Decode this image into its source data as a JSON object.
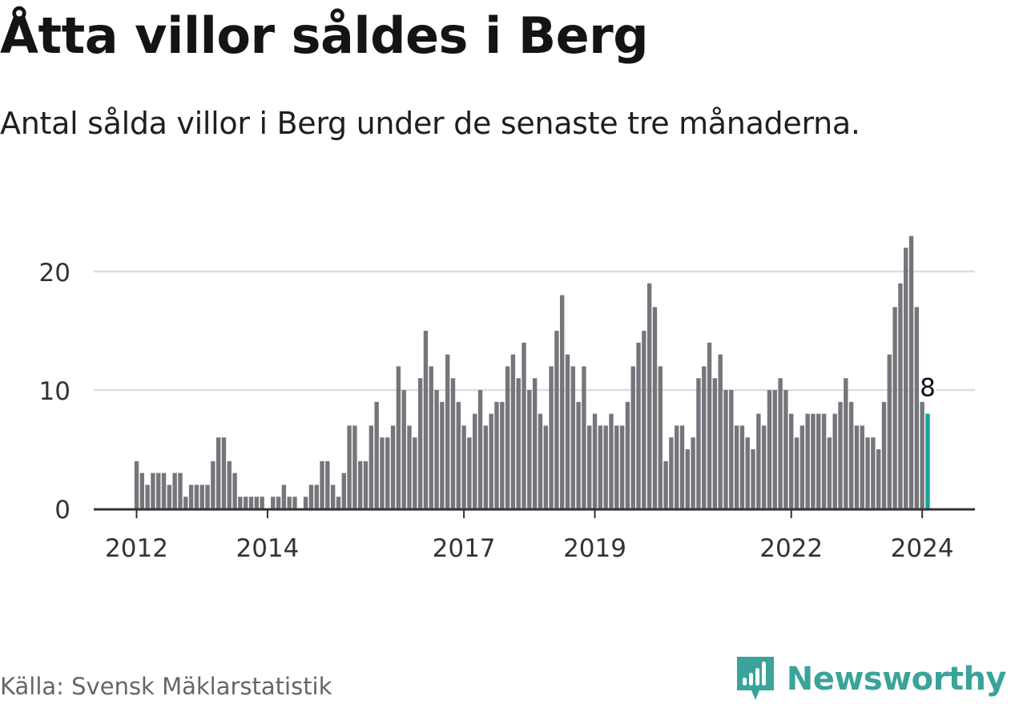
{
  "header": {
    "title": "Åtta villor såldes i Berg",
    "subtitle": "Antal sålda villor i Berg under de senaste tre månaderna."
  },
  "footer": {
    "source": "Källa: Svensk Mäklarstatistik",
    "brand": "Newsworthy",
    "brand_icon": "newsworthy-logo-icon"
  },
  "colors": {
    "bar": "#75767b",
    "highlight": "#19a29b",
    "grid": "#dddddd",
    "axis": "#333333",
    "brand": "#3aa39a"
  },
  "chart_data": {
    "type": "bar",
    "title": "Åtta villor såldes i Berg",
    "subtitle": "Antal sålda villor i Berg under de senaste tre månaderna.",
    "xlabel": "",
    "ylabel": "",
    "ylim": [
      0,
      25
    ],
    "y_ticks": [
      "0",
      "10",
      "20"
    ],
    "x_ticks": [
      {
        "label": "2012",
        "index": 0
      },
      {
        "label": "2014",
        "index": 24
      },
      {
        "label": "2017",
        "index": 60
      },
      {
        "label": "2019",
        "index": 84
      },
      {
        "label": "2022",
        "index": 120
      },
      {
        "label": "2024",
        "index": 144
      }
    ],
    "start": "2012-01",
    "values": [
      4,
      3,
      2,
      3,
      3,
      3,
      2,
      3,
      3,
      1,
      2,
      2,
      2,
      2,
      4,
      6,
      6,
      4,
      3,
      1,
      1,
      1,
      1,
      1,
      0,
      1,
      1,
      2,
      1,
      1,
      0,
      1,
      2,
      2,
      4,
      4,
      2,
      1,
      3,
      7,
      7,
      4,
      4,
      7,
      9,
      6,
      6,
      7,
      12,
      10,
      7,
      6,
      11,
      15,
      12,
      10,
      9,
      13,
      11,
      9,
      7,
      6,
      8,
      10,
      7,
      8,
      9,
      9,
      12,
      13,
      11,
      14,
      10,
      11,
      8,
      7,
      12,
      15,
      18,
      13,
      12,
      9,
      12,
      7,
      8,
      7,
      7,
      8,
      7,
      7,
      9,
      12,
      14,
      15,
      19,
      17,
      12,
      4,
      6,
      7,
      7,
      5,
      6,
      11,
      12,
      14,
      11,
      13,
      10,
      10,
      7,
      7,
      6,
      5,
      8,
      7,
      10,
      10,
      11,
      10,
      8,
      6,
      7,
      8,
      8,
      8,
      8,
      6,
      8,
      9,
      11,
      9,
      7,
      7,
      6,
      6,
      5,
      9,
      13,
      17,
      19,
      22,
      23,
      17,
      9,
      8
    ],
    "highlight_index": 145,
    "highlight_label": "8"
  }
}
